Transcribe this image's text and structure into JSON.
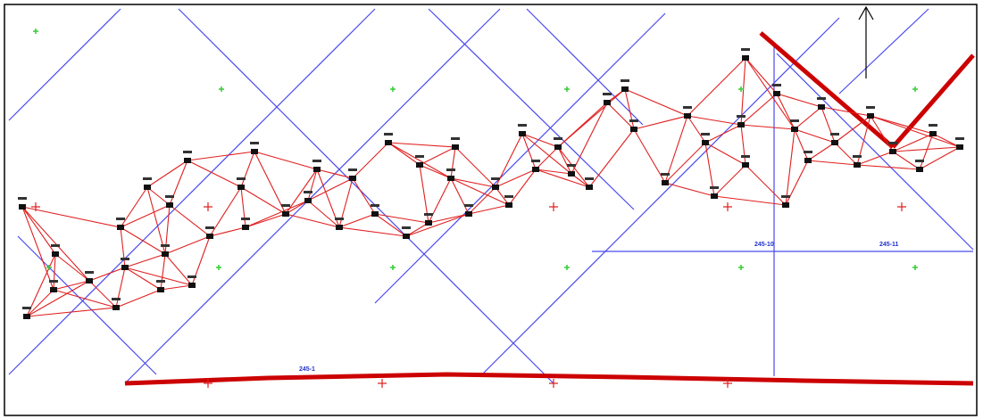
{
  "map": {
    "labels": [
      "245-10",
      "245-11",
      "245-1"
    ]
  }
}
